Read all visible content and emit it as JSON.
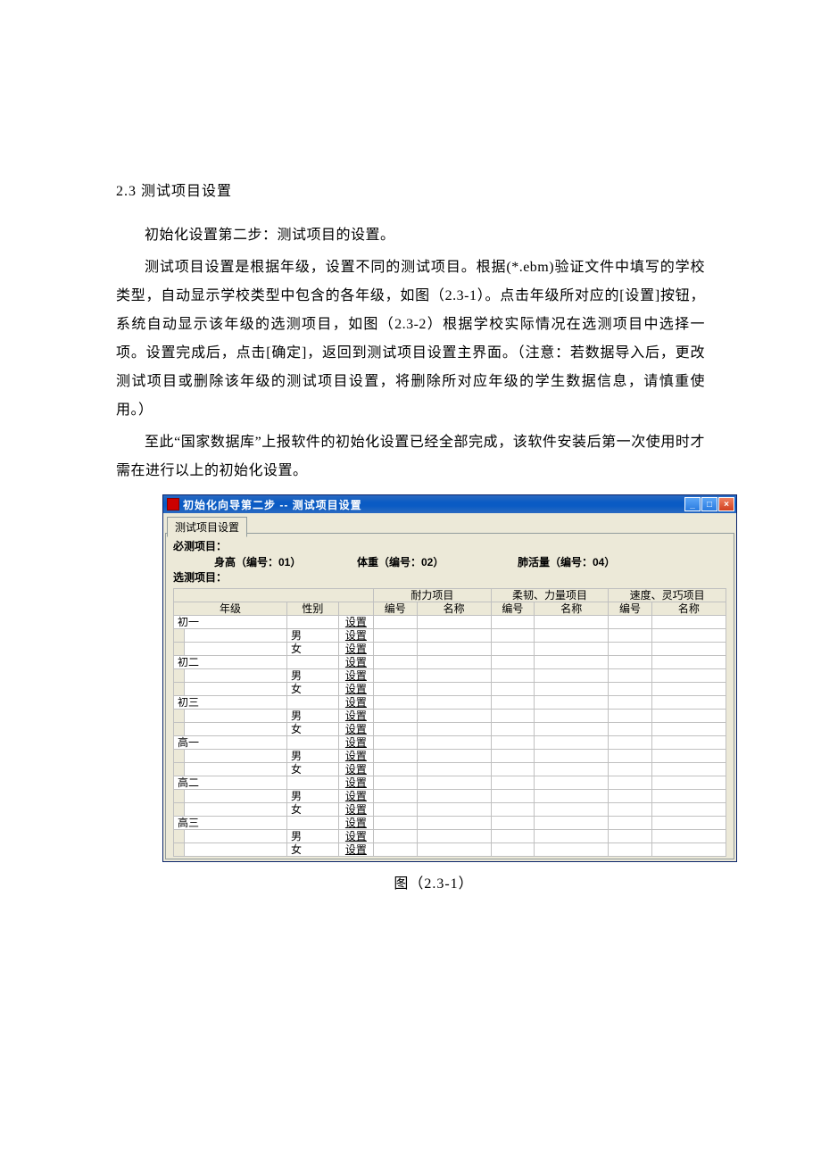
{
  "doc": {
    "heading": "2.3 测试项目设置",
    "p1": "初始化设置第二步：测试项目的设置。",
    "p2": "测试项目设置是根据年级，设置不同的测试项目。根据(*.ebm)验证文件中填写的学校类型，自动显示学校类型中包含的各年级，如图（2.3-1）。点击年级所对应的[设置]按钮，系统自动显示该年级的选测项目，如图（2.3-2）根据学校实际情况在选测项目中选择一项。设置完成后，点击[确定]，返回到测试项目设置主界面。（注意：若数据导入后，更改测试项目或删除该年级的测试项目设置，将删除所对应年级的学生数据信息，请慎重使用。）",
    "p3": "至此“国家数据库”上报软件的初始化设置已经全部完成，该软件安装后第一次使用时才需在进行以上的初始化设置。",
    "caption": "图（2.3-1）"
  },
  "window": {
    "title": "初始化向导第二步 -- 测试项目设置",
    "min": "_",
    "max": "□",
    "close": "×",
    "tab": "测试项目设置",
    "required_label": "必测项目：",
    "optional_label": "选测项目：",
    "req_items": {
      "a": "身高（编号：01）",
      "b": "体重（编号：02）",
      "c": "肺活量（编号：04）"
    },
    "grid": {
      "group_hdr": {
        "grade_span": "",
        "endurance": "耐力项目",
        "flex": "柔韧、力量项目",
        "speed": "速度、灵巧项目"
      },
      "col_hdr": {
        "grade": "年级",
        "gender": "性别",
        "set": "",
        "num": "编号",
        "name": "名称"
      },
      "set_label": "设置",
      "grades": [
        {
          "name": "初一"
        },
        {
          "name": "初二"
        },
        {
          "name": "初三"
        },
        {
          "name": "高一"
        },
        {
          "name": "高二"
        },
        {
          "name": "高三"
        }
      ],
      "gender_m": "男",
      "gender_f": "女"
    }
  }
}
